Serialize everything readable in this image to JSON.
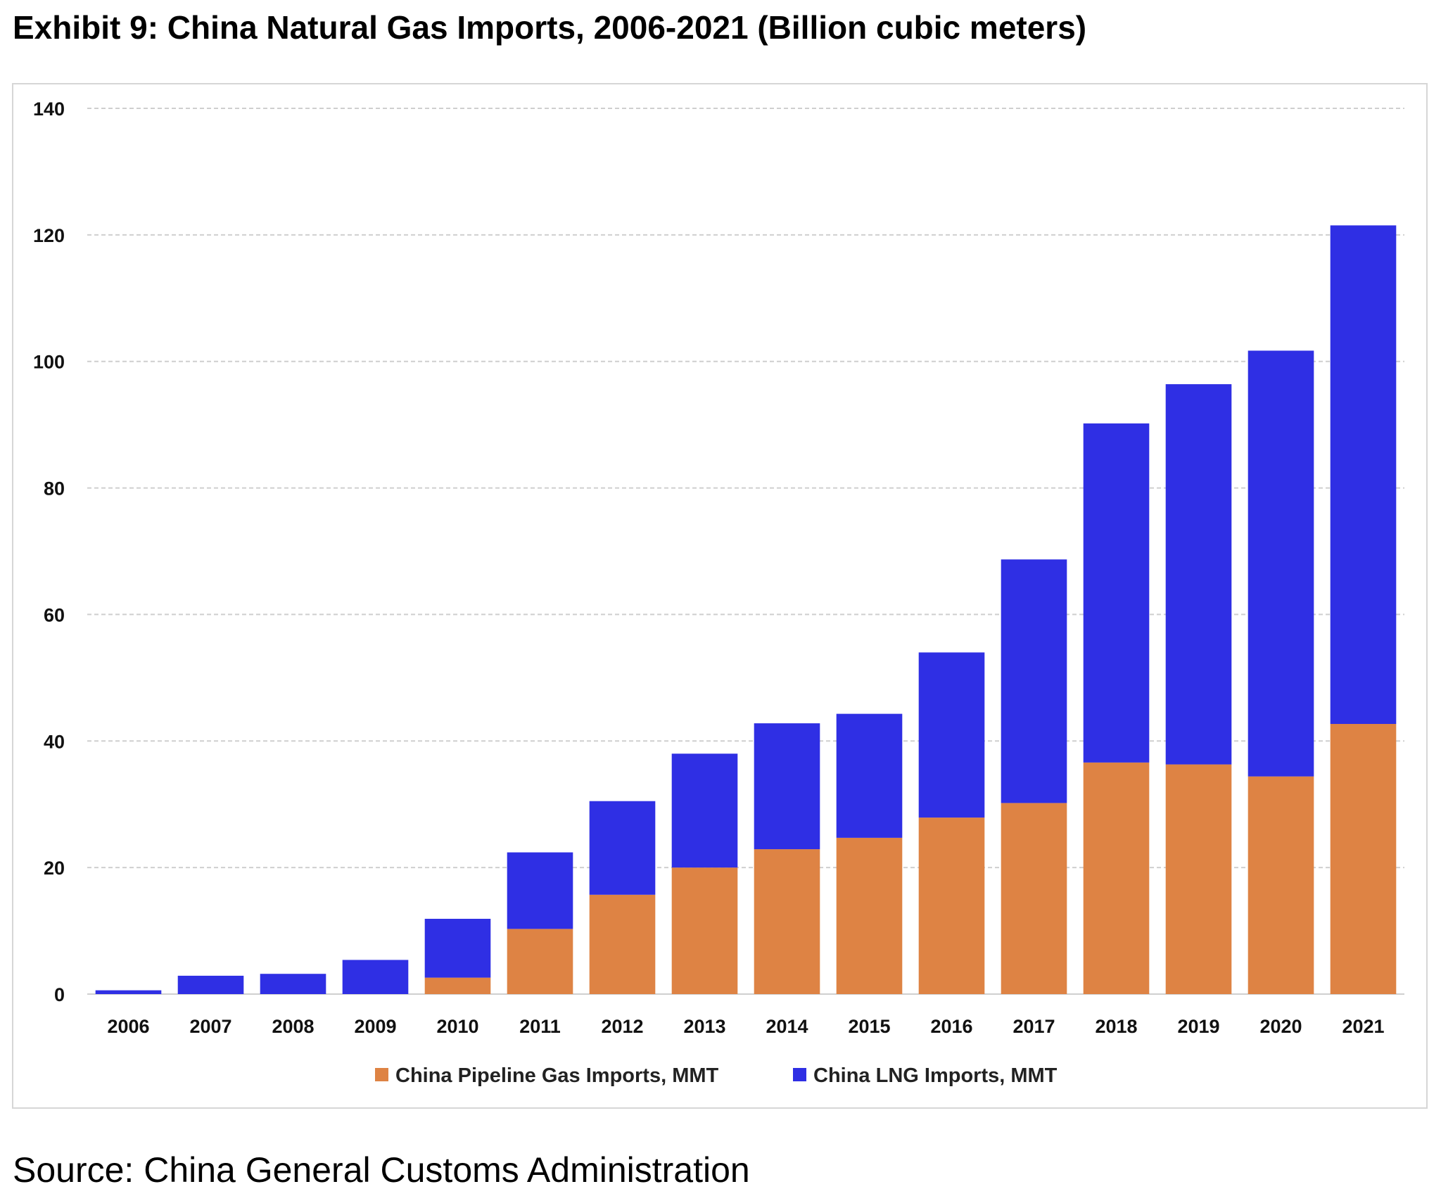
{
  "title": "Exhibit 9: China Natural Gas Imports, 2006-2021 (Billion cubic meters)",
  "source": "Source: China General Customs Administration",
  "chart_data": {
    "type": "bar",
    "stacked": true,
    "title": "Exhibit 9: China Natural Gas Imports, 2006-2021 (Billion cubic meters)",
    "xlabel": "",
    "ylabel": "",
    "ylim": [
      0,
      140
    ],
    "yticks": [
      0,
      20,
      40,
      60,
      80,
      100,
      120,
      140
    ],
    "grid": true,
    "legend_position": "bottom",
    "categories": [
      "2006",
      "2007",
      "2008",
      "2009",
      "2010",
      "2011",
      "2012",
      "2013",
      "2014",
      "2015",
      "2016",
      "2017",
      "2018",
      "2019",
      "2020",
      "2021"
    ],
    "series": [
      {
        "name": "China Pipeline Gas Imports, MMT",
        "color": "#DE8344",
        "values": [
          0,
          0,
          0,
          0,
          2.6,
          10.3,
          15.7,
          20.0,
          22.9,
          24.7,
          27.9,
          30.2,
          36.6,
          36.3,
          34.4,
          42.7
        ]
      },
      {
        "name": "China LNG Imports, MMT",
        "color": "#2F2FE4",
        "values": [
          0.6,
          2.9,
          3.2,
          5.4,
          9.3,
          12.1,
          14.8,
          18.0,
          19.9,
          19.6,
          26.1,
          38.5,
          53.6,
          60.1,
          67.3,
          78.8
        ]
      }
    ]
  }
}
